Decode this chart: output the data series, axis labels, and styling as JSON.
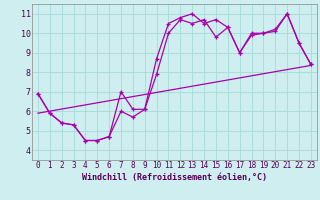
{
  "xlabel": "Windchill (Refroidissement éolien,°C)",
  "bg_color": "#ceeef0",
  "grid_color": "#aadddd",
  "line_color": "#aa00aa",
  "xlim": [
    -0.5,
    23.5
  ],
  "ylim": [
    3.5,
    11.5
  ],
  "xticks": [
    0,
    1,
    2,
    3,
    4,
    5,
    6,
    7,
    8,
    9,
    10,
    11,
    12,
    13,
    14,
    15,
    16,
    17,
    18,
    19,
    20,
    21,
    22,
    23
  ],
  "yticks": [
    4,
    5,
    6,
    7,
    8,
    9,
    10,
    11
  ],
  "line1_x": [
    0,
    1,
    2,
    3,
    4,
    5,
    6,
    7,
    8,
    9,
    10,
    11,
    12,
    13,
    14,
    15,
    16,
    17,
    18,
    19,
    20,
    21,
    22,
    23
  ],
  "line1_y": [
    6.9,
    5.9,
    5.4,
    5.3,
    4.5,
    4.5,
    4.7,
    7.0,
    6.1,
    6.1,
    8.7,
    10.5,
    10.8,
    11.0,
    10.5,
    10.7,
    10.3,
    9.0,
    9.9,
    10.0,
    10.2,
    11.0,
    9.5,
    8.4
  ],
  "line2_x": [
    0,
    1,
    2,
    3,
    4,
    5,
    6,
    7,
    8,
    9,
    10,
    11,
    12,
    13,
    14,
    15,
    16,
    17,
    18,
    19,
    20,
    21,
    22,
    23
  ],
  "line2_y": [
    6.9,
    5.9,
    5.4,
    5.3,
    4.5,
    4.5,
    4.7,
    6.0,
    5.7,
    6.1,
    7.9,
    10.0,
    10.7,
    10.5,
    10.7,
    9.8,
    10.3,
    9.0,
    10.0,
    10.0,
    10.1,
    11.0,
    9.5,
    8.4
  ],
  "line3_x": [
    0,
    23
  ],
  "line3_y": [
    5.9,
    8.35
  ],
  "marker": "+",
  "markersize": 3.5,
  "linewidth": 0.9,
  "tick_fontsize": 5.5,
  "xlabel_fontsize": 6.0
}
